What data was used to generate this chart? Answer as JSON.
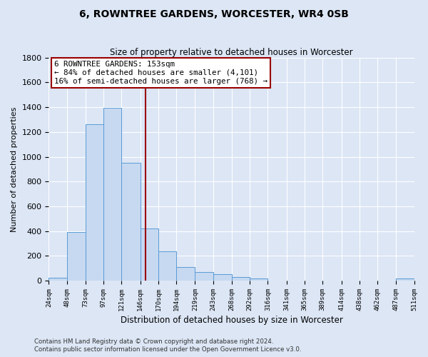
{
  "title": "6, ROWNTREE GARDENS, WORCESTER, WR4 0SB",
  "subtitle": "Size of property relative to detached houses in Worcester",
  "xlabel": "Distribution of detached houses by size in Worcester",
  "ylabel": "Number of detached properties",
  "bar_color": "#c6d9f1",
  "bar_edge_color": "#5b9bd5",
  "background_color": "#dce6f5",
  "plot_bg_color": "#dce6f5",
  "grid_color": "#ffffff",
  "vline_x": 153,
  "vline_color": "#990000",
  "annotation_title": "6 ROWNTREE GARDENS: 153sqm",
  "annotation_line1": "← 84% of detached houses are smaller (4,101)",
  "annotation_line2": "16% of semi-detached houses are larger (768) →",
  "annotation_box_color": "#ffffff",
  "annotation_box_edge": "#990000",
  "bin_edges": [
    24,
    48,
    73,
    97,
    121,
    146,
    170,
    194,
    219,
    243,
    268,
    292,
    316,
    341,
    365,
    389,
    414,
    438,
    462,
    487,
    511
  ],
  "bin_heights": [
    25,
    390,
    1265,
    1395,
    950,
    420,
    235,
    110,
    70,
    50,
    30,
    15,
    3,
    0,
    0,
    0,
    0,
    0,
    0,
    15
  ],
  "xtick_labels": [
    "24sqm",
    "48sqm",
    "73sqm",
    "97sqm",
    "121sqm",
    "146sqm",
    "170sqm",
    "194sqm",
    "219sqm",
    "243sqm",
    "268sqm",
    "292sqm",
    "316sqm",
    "341sqm",
    "365sqm",
    "389sqm",
    "414sqm",
    "438sqm",
    "462sqm",
    "487sqm",
    "511sqm"
  ],
  "ylim": [
    0,
    1800
  ],
  "yticks": [
    0,
    200,
    400,
    600,
    800,
    1000,
    1200,
    1400,
    1600,
    1800
  ],
  "footer_line1": "Contains HM Land Registry data © Crown copyright and database right 2024.",
  "footer_line2": "Contains public sector information licensed under the Open Government Licence v3.0."
}
